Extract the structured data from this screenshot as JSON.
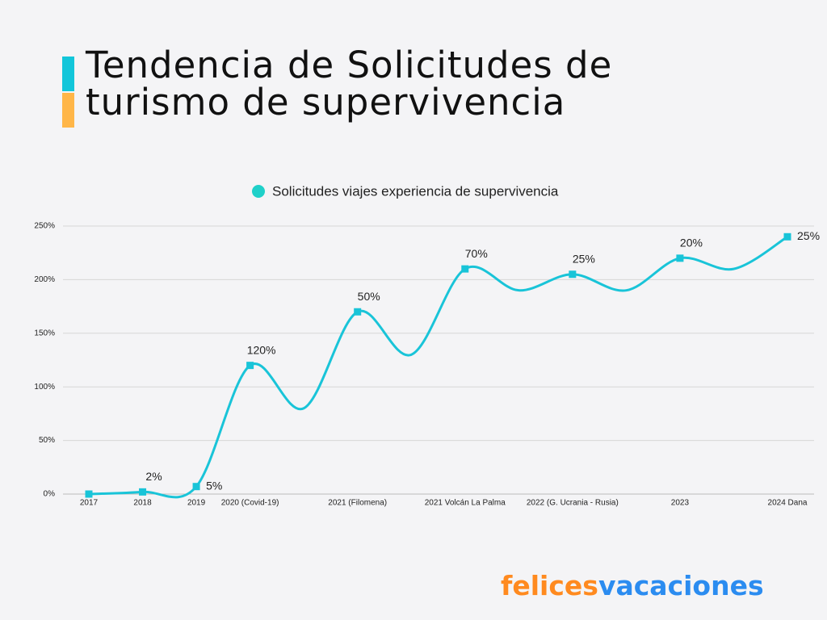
{
  "header": {
    "title_lines": [
      "Tendencia de Solicitudes de",
      "turismo de supervivencia"
    ]
  },
  "chart_data": {
    "type": "line",
    "categories": [
      "2017",
      "2018",
      "2019",
      "2020 (Covid-19)",
      null,
      "2021 (Filomena)",
      null,
      "2021 Volcán La Palma",
      null,
      "2022 (G. Ucrania - Rusia)",
      null,
      "2023",
      null,
      "2024 Dana"
    ],
    "series": [
      {
        "name": "Solicitudes viajes experiencia de supervivencia",
        "color": "#19c4d8",
        "values": [
          0,
          2,
          7,
          120,
          80,
          170,
          130,
          210,
          190,
          205,
          190,
          220,
          210,
          240
        ],
        "point_labels": [
          null,
          "2%",
          "5%",
          "120%",
          null,
          "50%",
          null,
          "70%",
          null,
          "25%",
          null,
          "20%",
          null,
          "25%"
        ]
      }
    ],
    "ylim": [
      0,
      250
    ],
    "yticks": [
      {
        "value": 0,
        "label": "0%"
      },
      {
        "value": 50,
        "label": "50%"
      },
      {
        "value": 100,
        "label": "100%"
      },
      {
        "value": 150,
        "label": "150%"
      },
      {
        "value": 200,
        "label": "200%"
      },
      {
        "value": 250,
        "label": "250%"
      }
    ],
    "grid": true,
    "legend": "top"
  },
  "brand": [
    "felices",
    "vacaciones"
  ]
}
